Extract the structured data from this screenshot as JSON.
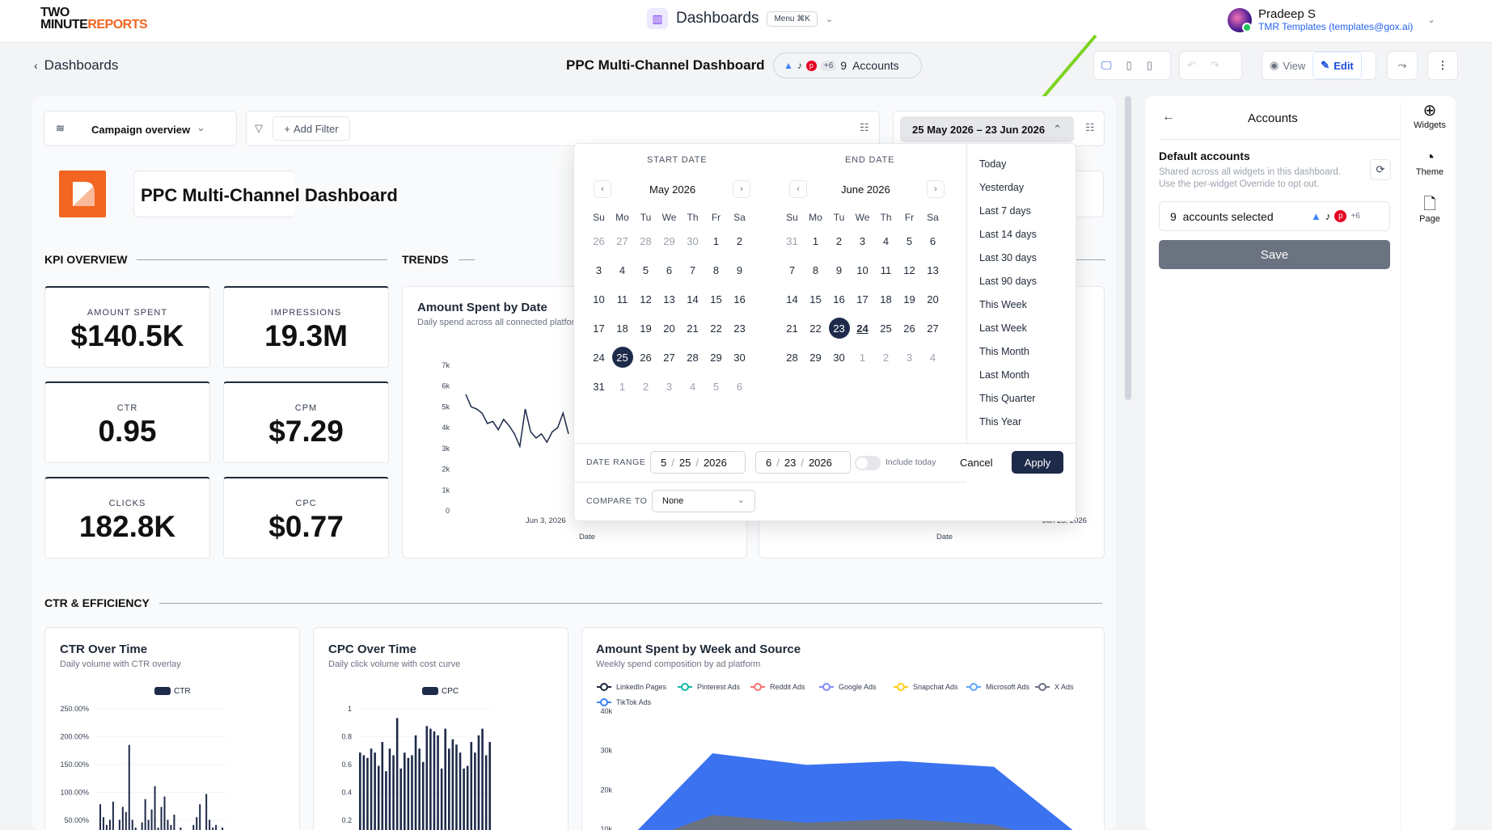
{
  "app": {
    "logo_line1": "TWO",
    "logo_line2a": "MINUTE",
    "logo_line2b": "REPORTS",
    "section_title": "Dashboards",
    "menu_shortcut": "Menu ⌘K",
    "user_name": "Pradeep S",
    "user_email": "TMR Templates (templates@gox.ai)"
  },
  "subbar": {
    "back_label": "Dashboards",
    "title": "PPC Multi-Channel Dashboard",
    "accounts_extra": "+6",
    "accounts_label": "9  Accounts",
    "view_label": "View",
    "edit_label": "Edit"
  },
  "filters": {
    "campaign_selector": "Campaign overview",
    "add_filter": "Add Filter",
    "date_range_button": "25 May 2026 – 23 Jun 2026"
  },
  "dashboard": {
    "title": "PPC Multi-Channel Dashboard",
    "kpi_section": "KPI OVERVIEW",
    "trends_section": "TRENDS",
    "ctr_section": "CTR & EFFICIENCY",
    "kpis": [
      {
        "label": "AMOUNT SPENT",
        "value": "$140.5K"
      },
      {
        "label": "IMPRESSIONS",
        "value": "19.3M"
      },
      {
        "label": "CTR",
        "value": "0.95"
      },
      {
        "label": "CPM",
        "value": "$7.29"
      },
      {
        "label": "CLICKS",
        "value": "182.8K"
      },
      {
        "label": "CPC",
        "value": "$0.77"
      }
    ]
  },
  "widgets": {
    "amount_spent_by_date": {
      "title": "Amount Spent by Date",
      "subtitle": "Daily spend across all connected platforms",
      "x_label": "Date",
      "x_tick": "Jun 3, 2026"
    },
    "right_trend": {
      "x_label": "Date",
      "x_tick_last": "Jun 23, 2026"
    },
    "ctr_over_time": {
      "title": "CTR Over Time",
      "subtitle": "Daily volume with CTR overlay",
      "legend": "CTR"
    },
    "cpc_over_time": {
      "title": "CPC Over Time",
      "subtitle": "Daily click volume with cost curve",
      "legend": "CPC"
    },
    "spent_by_week": {
      "title": "Amount Spent by Week and Source",
      "subtitle": "Weekly spend composition by ad platform"
    }
  },
  "chart_data": [
    {
      "type": "line",
      "title": "Amount Spent by Date",
      "xlabel": "Date",
      "ylim": [
        0,
        7000
      ],
      "y_ticks": [
        "7k",
        "6k",
        "5k",
        "4k",
        "3k",
        "2k",
        "1k",
        "0"
      ],
      "values": [
        5600,
        5000,
        4900,
        4700,
        4200,
        4300,
        3900,
        4400,
        4100,
        3700,
        3100,
        4900,
        3800,
        3500,
        3700,
        3300,
        3800,
        4000,
        4700,
        3700
      ]
    },
    {
      "type": "bar",
      "title": "CTR Over Time",
      "y_ticks": [
        "250.00%",
        "200.00%",
        "150.00%",
        "100.00%",
        "50.00%"
      ],
      "ylim": [
        0,
        270
      ],
      "values": [
        35,
        85,
        60,
        45,
        55,
        90,
        30,
        55,
        80,
        70,
        200,
        55,
        40,
        30,
        50,
        95,
        55,
        75,
        120,
        40,
        80,
        100,
        55,
        45,
        65,
        30,
        40,
        35,
        25,
        35,
        45,
        60,
        85,
        30,
        105,
        55,
        40,
        45,
        30,
        40,
        35
      ]
    },
    {
      "type": "bar",
      "title": "CPC Over Time",
      "y_ticks": [
        "1",
        "0.8",
        "0.6",
        "0.4",
        "0.2"
      ],
      "ylim": [
        0,
        1.05
      ],
      "values": [
        0.72,
        0.7,
        0.68,
        0.75,
        0.72,
        0.62,
        0.8,
        0.58,
        0.75,
        0.7,
        0.98,
        0.6,
        0.72,
        0.68,
        0.7,
        0.85,
        0.75,
        0.65,
        0.92,
        0.9,
        0.88,
        0.85,
        0.6,
        0.9,
        0.75,
        0.82,
        0.78,
        0.72,
        0.6,
        0.62,
        0.8,
        0.72,
        0.85,
        0.9,
        0.7,
        0.8
      ]
    },
    {
      "type": "area",
      "title": "Amount Spent by Week and Source",
      "y_ticks": [
        "40k",
        "30k",
        "20k",
        "10k"
      ],
      "ylim": [
        0,
        40000
      ],
      "legend": [
        "LinkedIn Pages",
        "Pinterest Ads",
        "Reddit Ads",
        "Google Ads",
        "Snapchat Ads",
        "Microsoft Ads",
        "X Ads",
        "TikTok Ads"
      ],
      "legend_colors": [
        "#1e293b",
        "#14b8a6",
        "#f87171",
        "#818cf8",
        "#facc15",
        "#60a5fa",
        "#6b7280",
        "#3b82f6"
      ],
      "series": [
        {
          "name": "TikTok Ads",
          "values": [
            2000,
            27000,
            24000,
            25000,
            23500,
            4000
          ]
        },
        {
          "name": "X Ads",
          "values": [
            2000,
            11000,
            9000,
            10000,
            8500,
            2000
          ]
        }
      ]
    }
  ],
  "datepicker": {
    "start_header": "START DATE",
    "end_header": "END DATE",
    "start_month": "May 2026",
    "end_month": "June 2026",
    "dow": [
      "Su",
      "Mo",
      "Tu",
      "We",
      "Th",
      "Fr",
      "Sa"
    ],
    "start_days": [
      "26",
      "27",
      "28",
      "29",
      "30",
      "1",
      "2",
      "3",
      "4",
      "5",
      "6",
      "7",
      "8",
      "9",
      "10",
      "11",
      "12",
      "13",
      "14",
      "15",
      "16",
      "17",
      "18",
      "19",
      "20",
      "21",
      "22",
      "23",
      "24",
      "25",
      "26",
      "27",
      "28",
      "29",
      "30",
      "31",
      "1",
      "2",
      "3",
      "4",
      "5",
      "6"
    ],
    "end_days": [
      "31",
      "1",
      "2",
      "3",
      "4",
      "5",
      "6",
      "7",
      "8",
      "9",
      "10",
      "11",
      "12",
      "13",
      "14",
      "15",
      "16",
      "17",
      "18",
      "19",
      "20",
      "21",
      "22",
      "23",
      "24",
      "25",
      "26",
      "27",
      "28",
      "29",
      "30",
      "1",
      "2",
      "3",
      "4"
    ],
    "presets": [
      "Today",
      "Yesterday",
      "Last 7 days",
      "Last 14 days",
      "Last 30 days",
      "Last 90 days",
      "This Week",
      "Last Week",
      "This Month",
      "Last Month",
      "This Quarter",
      "This Year"
    ],
    "date_range_label": "DATE RANGE",
    "from": {
      "m": "5",
      "d": "25",
      "y": "2026"
    },
    "to": {
      "m": "6",
      "d": "23",
      "y": "2026"
    },
    "include_today": "Include today",
    "cancel": "Cancel",
    "apply": "Apply",
    "compare_label": "COMPARE TO",
    "compare_value": "None"
  },
  "accounts_panel": {
    "title": "Accounts",
    "default_heading": "Default accounts",
    "default_desc_1": "Shared across all widgets in this dashboard.",
    "default_desc_2": "Use the per-widget Override to opt out.",
    "selected": "9  accounts selected",
    "extra": "+6",
    "save": "Save"
  },
  "side_tools": [
    "Widgets",
    "Theme",
    "Page"
  ]
}
